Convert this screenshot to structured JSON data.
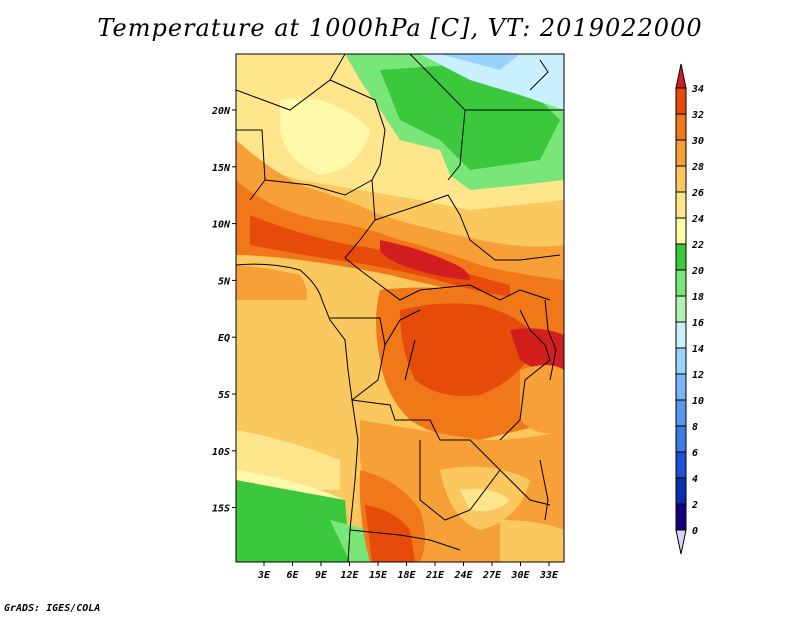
{
  "title": "Temperature at 1000hPa [C], VT: 2019022000",
  "credit": "GrADS: IGES/COLA",
  "map": {
    "lon_labels": [
      "3E",
      "6E",
      "9E",
      "12E",
      "15E",
      "18E",
      "21E",
      "24E",
      "27E",
      "30E",
      "33E"
    ],
    "lat_labels": [
      "20N",
      "15N",
      "10N",
      "5N",
      "EQ",
      "5S",
      "10S",
      "15S"
    ]
  },
  "colorbar": {
    "levels": [
      "0",
      "2",
      "4",
      "6",
      "8",
      "10",
      "12",
      "14",
      "16",
      "18",
      "20",
      "22",
      "24",
      "26",
      "28",
      "30",
      "32",
      "34"
    ],
    "colors": [
      "#d6d6ff",
      "#160082",
      "#0a2fae",
      "#1e50d2",
      "#3c7ae6",
      "#5a96f0",
      "#7ab4fa",
      "#9ad2ff",
      "#c8f0ff",
      "#b4f0b4",
      "#78e678",
      "#3cc83c",
      "#fffaaa",
      "#ffe68c",
      "#fbc860",
      "#f8a038",
      "#f07818",
      "#e64b0a",
      "#d21e1e"
    ]
  }
}
